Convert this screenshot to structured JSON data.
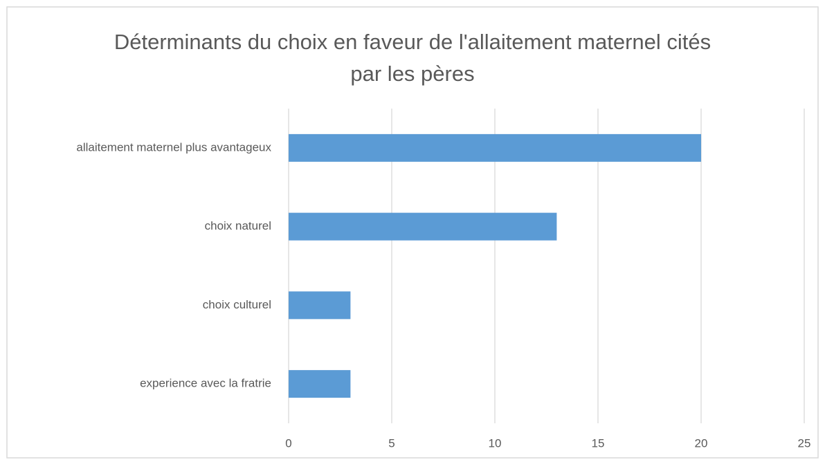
{
  "chart_data": {
    "type": "bar",
    "orientation": "horizontal",
    "title": "Déterminants du choix en faveur de l'allaitement maternel cités par les pères",
    "categories": [
      "allaitement maternel plus avantageux",
      "choix naturel",
      "choix culturel",
      "experience avec la fratrie"
    ],
    "values": [
      20,
      13,
      3,
      3
    ],
    "color": "#5b9bd5",
    "xlim": [
      0,
      25
    ],
    "xticks": [
      0,
      5,
      10,
      15,
      20,
      25
    ],
    "grid": true
  }
}
